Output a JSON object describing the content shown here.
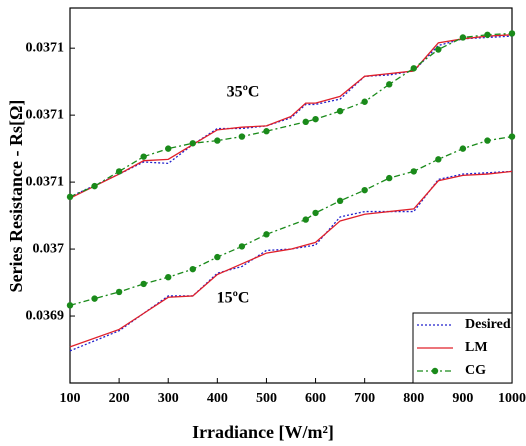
{
  "chart_data": {
    "type": "line",
    "y_label": "Series Resistance - Rs[Ω]",
    "x_label": "Irradiance [W/m²]",
    "annotations": [
      "35ºC",
      "15ºC"
    ],
    "xlim": [
      100,
      1000
    ],
    "xticks": [
      100,
      200,
      300,
      400,
      500,
      600,
      700,
      800,
      900,
      1000
    ],
    "ylim": [
      0.03685,
      0.03713
    ],
    "yticks": [
      {
        "value": 0.0369,
        "label": "0.0369"
      },
      {
        "value": 0.03695,
        "label": "0.037"
      },
      {
        "value": 0.037,
        "label": "0.0371"
      },
      {
        "value": 0.03705,
        "label": "0.0371"
      },
      {
        "value": 0.0371,
        "label": "0.0371"
      }
    ],
    "grid": false,
    "legend": "lower right",
    "series": [
      {
        "name": "Desired",
        "color": "#2222cc",
        "dash": "dotted",
        "x": [
          100,
          200,
          250,
          300,
          350,
          400,
          450,
          500,
          550,
          580,
          600,
          650,
          700,
          750,
          800,
          850,
          900,
          950,
          1000
        ],
        "values": [
          0.036989,
          0.037006,
          0.037015,
          0.037014,
          0.037028,
          0.03704,
          0.03704,
          0.037042,
          0.037048,
          0.037058,
          0.037058,
          0.037062,
          0.037079,
          0.03708,
          0.037083,
          0.037102,
          0.037107,
          0.037108,
          0.037109
        ]
      },
      {
        "name": "Desired",
        "color": "#2222cc",
        "dash": "dotted",
        "x": [
          100,
          200,
          250,
          300,
          350,
          400,
          450,
          500,
          550,
          600,
          650,
          700,
          750,
          800,
          850,
          900,
          950,
          1000
        ],
        "values": [
          0.036874,
          0.036889,
          0.036902,
          0.036915,
          0.036915,
          0.036932,
          0.036937,
          0.036949,
          0.03695,
          0.036953,
          0.036974,
          0.036978,
          0.036978,
          0.036978,
          0.037002,
          0.037006,
          0.037007,
          0.037008
        ]
      },
      {
        "name": "LM",
        "color": "#e0202a",
        "dash": "solid",
        "x": [
          100,
          200,
          250,
          300,
          350,
          400,
          450,
          500,
          550,
          580,
          600,
          650,
          700,
          750,
          800,
          850,
          900,
          950,
          1000
        ],
        "values": [
          0.036988,
          0.037006,
          0.037016,
          0.037017,
          0.037028,
          0.037039,
          0.037041,
          0.037042,
          0.037049,
          0.037059,
          0.037059,
          0.037064,
          0.037079,
          0.037081,
          0.037083,
          0.037104,
          0.037107,
          0.037109,
          0.03711
        ]
      },
      {
        "name": "LM",
        "color": "#e0202a",
        "dash": "solid",
        "x": [
          100,
          200,
          250,
          300,
          350,
          400,
          450,
          500,
          550,
          600,
          650,
          700,
          750,
          800,
          850,
          900,
          950,
          1000
        ],
        "values": [
          0.036877,
          0.03689,
          0.036902,
          0.036914,
          0.036915,
          0.036931,
          0.036939,
          0.036947,
          0.03695,
          0.036955,
          0.036971,
          0.036976,
          0.036978,
          0.03698,
          0.037001,
          0.037005,
          0.037006,
          0.037008
        ]
      },
      {
        "name": "CG",
        "color": "#1a8a1a",
        "dash": "dashdot",
        "marker": "circle",
        "x": [
          100,
          150,
          200,
          250,
          300,
          350,
          400,
          450,
          500,
          580,
          600,
          650,
          700,
          750,
          800,
          850,
          900,
          950,
          1000
        ],
        "values": [
          0.036989,
          0.036997,
          0.037008,
          0.037019,
          0.037025,
          0.037029,
          0.037031,
          0.037034,
          0.037038,
          0.037045,
          0.037047,
          0.037053,
          0.03706,
          0.037073,
          0.037085,
          0.037099,
          0.037108,
          0.03711,
          0.037111
        ]
      },
      {
        "name": "CG",
        "color": "#1a8a1a",
        "dash": "dashdot",
        "marker": "circle",
        "x": [
          100,
          150,
          200,
          250,
          300,
          350,
          400,
          450,
          500,
          580,
          600,
          650,
          700,
          750,
          800,
          850,
          900,
          950,
          1000
        ],
        "values": [
          0.036908,
          0.036913,
          0.036918,
          0.036924,
          0.036929,
          0.036935,
          0.036944,
          0.036952,
          0.036961,
          0.036972,
          0.036977,
          0.036986,
          0.036994,
          0.037003,
          0.037008,
          0.037017,
          0.037025,
          0.037031,
          0.037034
        ]
      }
    ]
  }
}
